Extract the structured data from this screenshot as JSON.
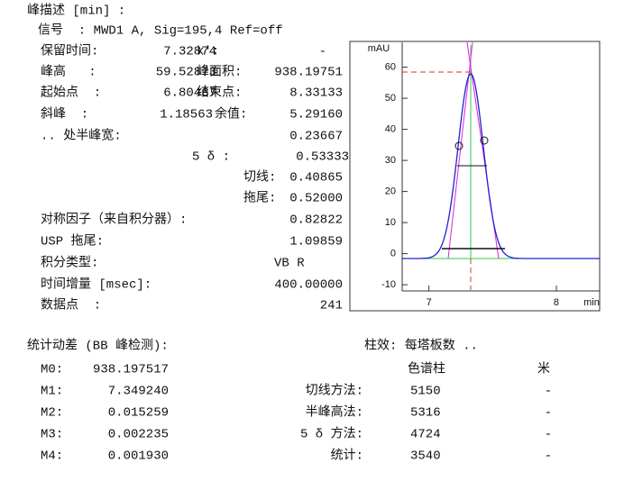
{
  "report": {
    "title": "峰描述 [min] :",
    "signal": "信号  : MWD1 A, Sig=195,4 Ref=off",
    "rows": [
      [
        "保留时间:",
        "7.32874",
        "k':",
        "-"
      ],
      [
        "峰高   :",
        "59.52873",
        "峰面积:",
        "938.19751"
      ],
      [
        "起始点  :",
        "6.80467",
        "结束点:",
        "8.33133"
      ],
      [
        "斜峰  :",
        "1.18563",
        "余值:",
        "5.29160"
      ]
    ],
    "half_width": [
      ".. 处半峰宽:",
      "0.23667"
    ],
    "widths": [
      [
        "5 δ :",
        "0.53333"
      ],
      [
        "切线:",
        "0.40865"
      ],
      [
        "拖尾:",
        "0.52000"
      ]
    ],
    "extra": [
      [
        "对称因子（来自积分器）:",
        "0.82822"
      ],
      [
        "USP 拖尾:",
        "1.09859"
      ],
      [
        "积分类型:",
        "VB R"
      ],
      [
        "时间增量 [msec]:",
        "400.00000"
      ],
      [
        "数据点  :",
        "241"
      ]
    ]
  },
  "moments": {
    "title": "统计动差 (BB 峰检测):",
    "rows": [
      [
        "M0:",
        "938.197517"
      ],
      [
        "M1:",
        "7.349240"
      ],
      [
        "M2:",
        "0.015259"
      ],
      [
        "M3:",
        "0.002235"
      ],
      [
        "M4:",
        "0.001930"
      ]
    ]
  },
  "efficiency": {
    "title": "柱效: 每塔板数 ..",
    "headers": [
      "色谱柱",
      "米"
    ],
    "rows": [
      [
        "切线方法:",
        "5150",
        "-"
      ],
      [
        "半峰高法:",
        "5316",
        "-"
      ],
      [
        "5 δ 方法:",
        "4724",
        "-"
      ],
      [
        "统计:",
        "3540",
        "-"
      ]
    ]
  },
  "chart": {
    "ylabel": "mAU",
    "xlabel": "min",
    "ylim": [
      -12,
      68
    ],
    "yticks": [
      -10,
      0,
      10,
      20,
      30,
      40,
      50,
      60
    ],
    "xlim": [
      6.79,
      8.34
    ],
    "xticks": [
      7,
      8
    ]
  }
}
